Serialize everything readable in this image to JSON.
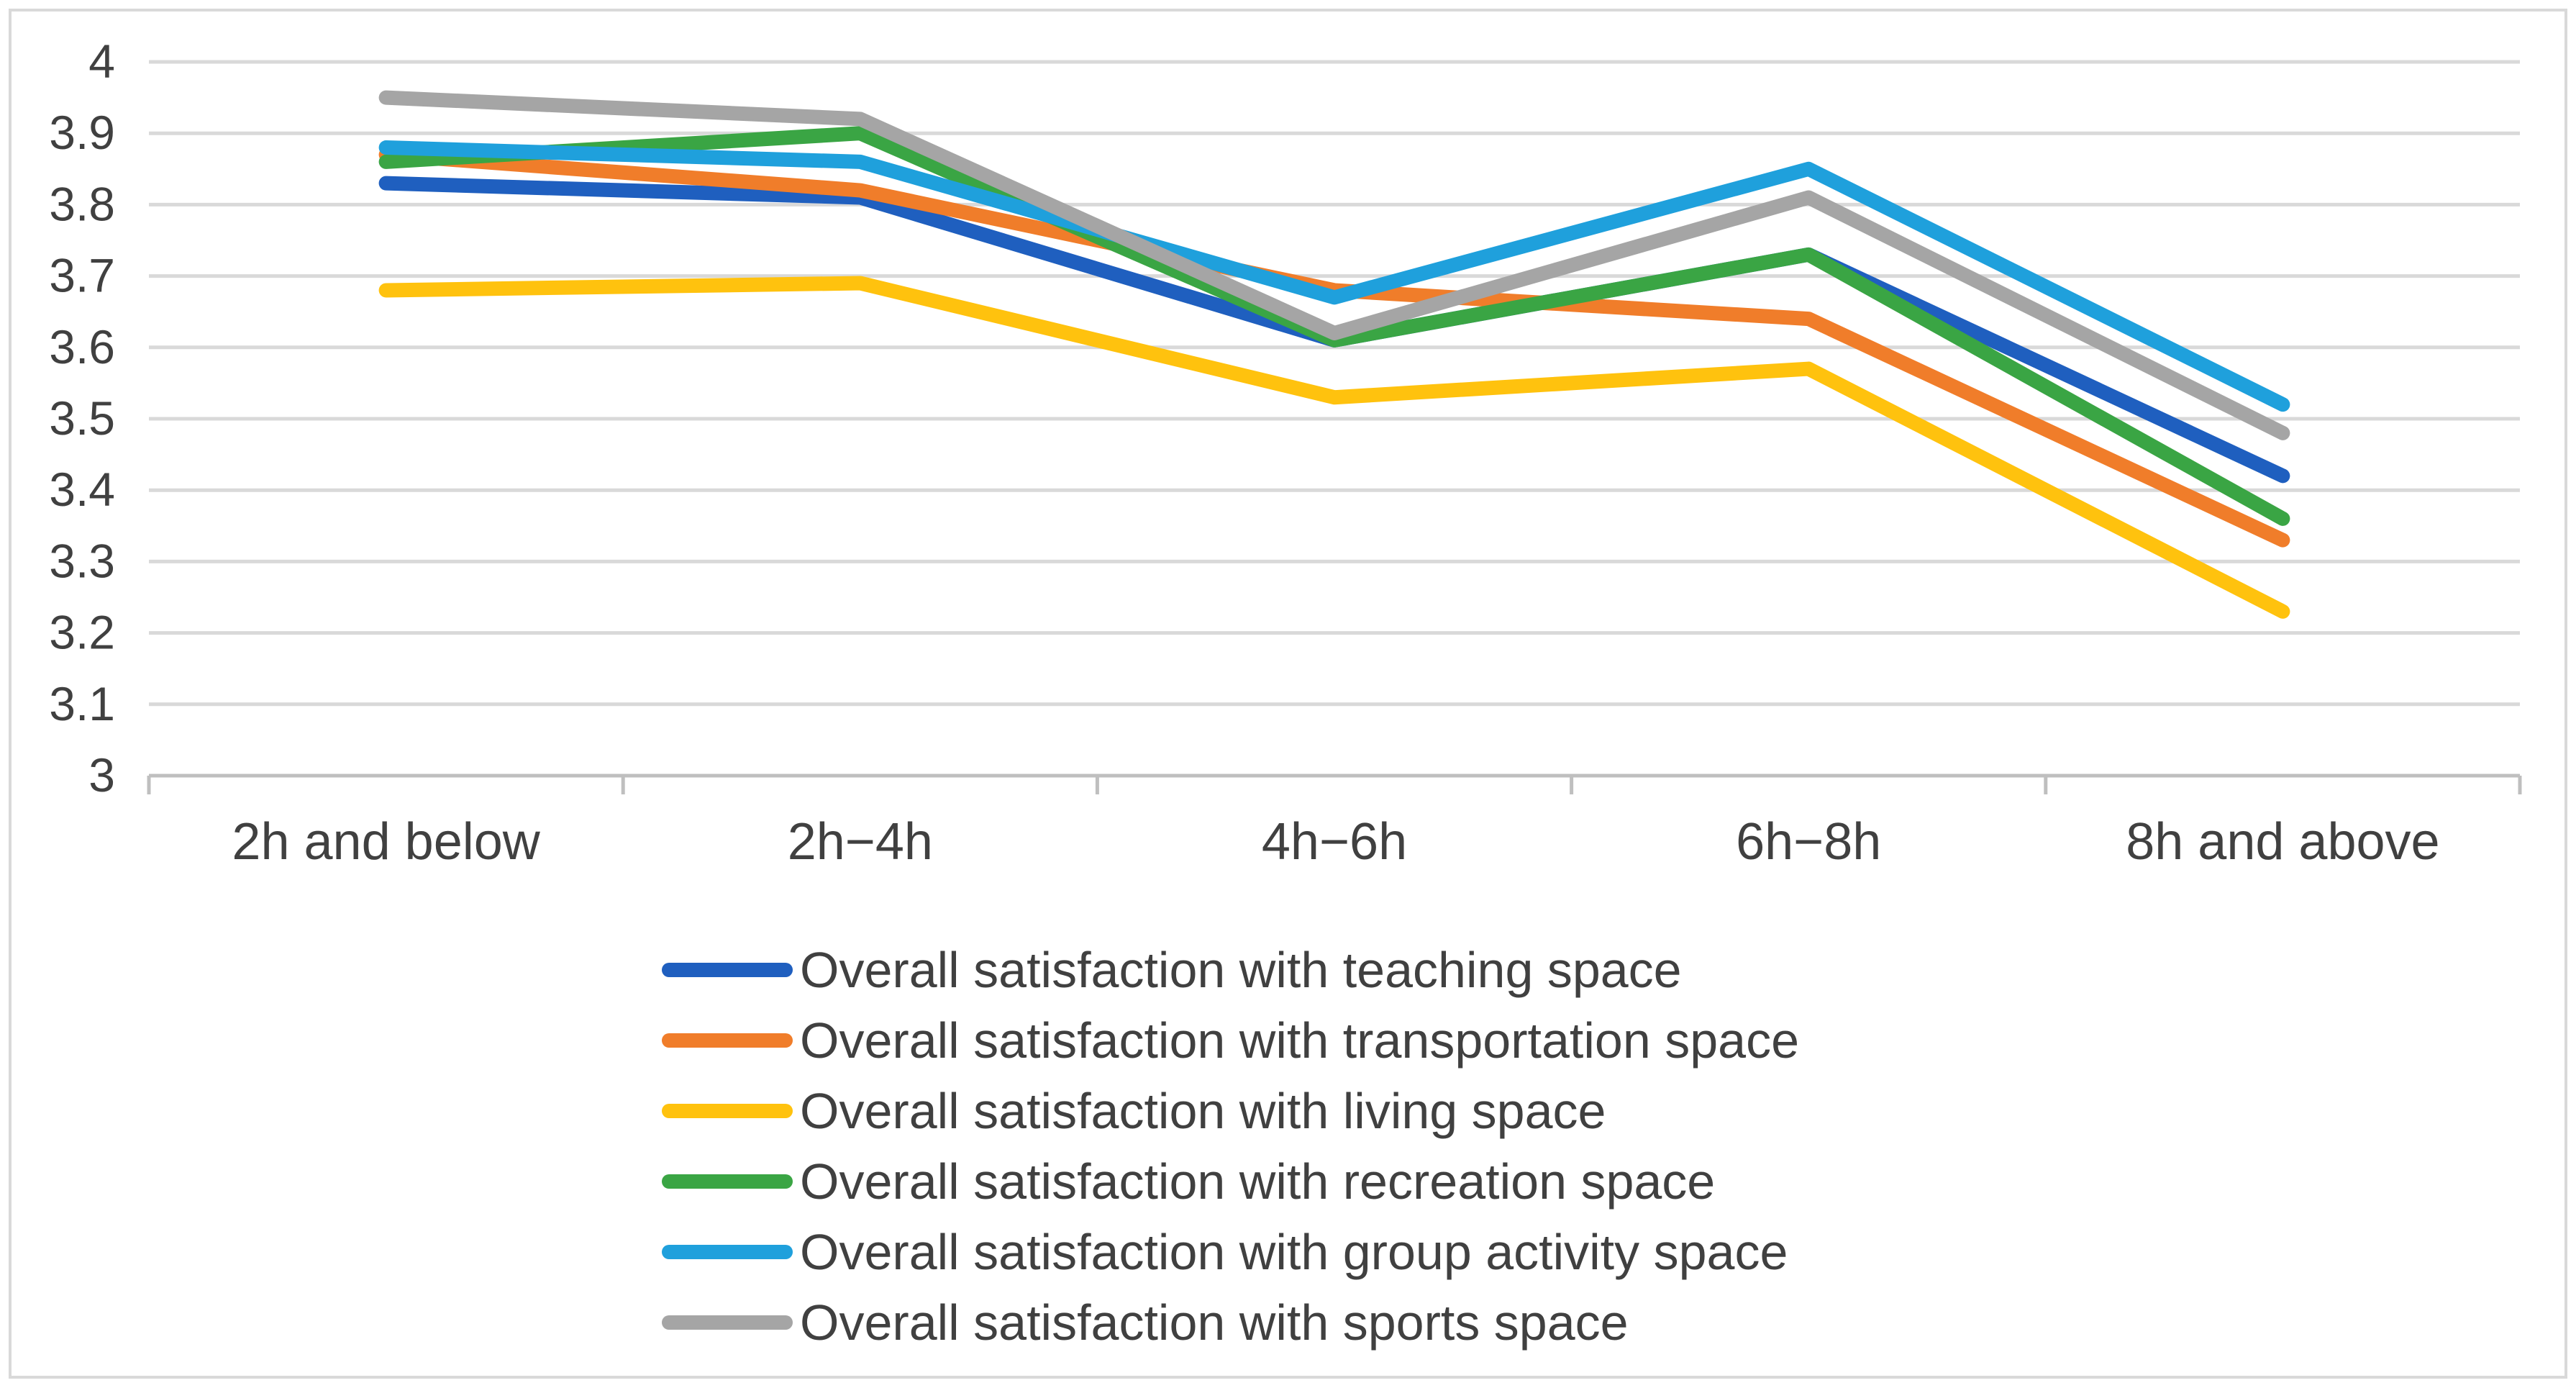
{
  "chart_data": {
    "type": "line",
    "categories": [
      "2h and below",
      "2h−4h",
      "4h−6h",
      "6h−8h",
      "8h and above"
    ],
    "ylim": [
      3,
      4
    ],
    "yticks": [
      "3",
      "3.1",
      "3.2",
      "3.3",
      "3.4",
      "3.5",
      "3.6",
      "3.7",
      "3.8",
      "3.9",
      "4"
    ],
    "grid": true,
    "legend_position": "bottom",
    "series": [
      {
        "name": "Overall satisfaction with teaching space",
        "color": "#1f5fbf",
        "values": [
          3.83,
          3.81,
          3.61,
          3.73,
          3.42
        ]
      },
      {
        "name": "Overall satisfaction with transportation space",
        "color": "#f07d2a",
        "values": [
          3.87,
          3.82,
          3.68,
          3.64,
          3.33
        ]
      },
      {
        "name": "Overall satisfaction with living space",
        "color": "#ffc20e",
        "values": [
          3.68,
          3.69,
          3.53,
          3.57,
          3.23
        ]
      },
      {
        "name": "Overall satisfaction with recreation space",
        "color": "#3aa544",
        "values": [
          3.86,
          3.9,
          3.61,
          3.73,
          3.36
        ]
      },
      {
        "name": "Overall satisfaction with group activity space",
        "color": "#1fa0dc",
        "values": [
          3.88,
          3.86,
          3.67,
          3.85,
          3.52
        ]
      },
      {
        "name": "Overall satisfaction with sports space",
        "color": "#a5a5a5",
        "values": [
          3.95,
          3.92,
          3.62,
          3.81,
          3.48
        ]
      }
    ]
  }
}
